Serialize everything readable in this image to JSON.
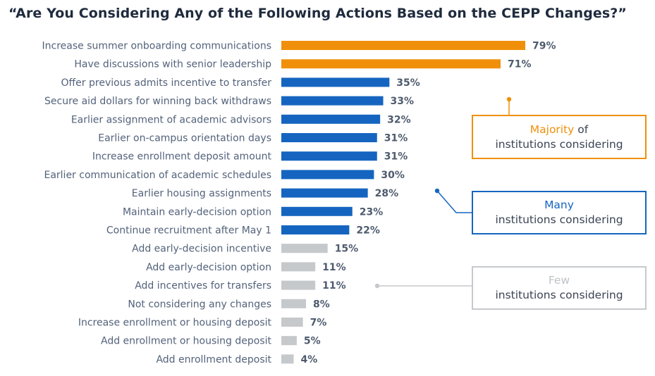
{
  "title": "“Are You Considering Any of the Following Actions Based on the CEPP Changes?”",
  "colors": {
    "orange": "#f0900a",
    "blue": "#1565c0",
    "gray": "#c6c9cc"
  },
  "callouts": {
    "majority": {
      "highlight": "Majority",
      "rest": " of",
      "line2": "institutions considering"
    },
    "many": {
      "highlight": "Many",
      "line2": "institutions considering"
    },
    "few": {
      "highlight": "Few",
      "line2": "institutions considering"
    }
  },
  "chart_data": {
    "type": "bar",
    "orientation": "horizontal",
    "title": "“Are You Considering Any of the Following Actions Based on the CEPP Changes?”",
    "categories": [
      "Increase summer onboarding communications",
      "Have discussions with senior leadership",
      "Offer previous admits incentive to transfer",
      "Secure aid dollars for winning back withdraws",
      "Earlier assignment of academic advisors",
      "Earlier on-campus orientation days",
      "Increase enrollment deposit amount",
      "Earlier communication of academic schedules",
      "Earlier housing assignments",
      "Maintain early-decision option",
      "Continue recruitment after May 1",
      "Add early-decision incentive",
      "Add early-decision option",
      "Add incentives for transfers",
      "Not considering any changes",
      "Increase enrollment or housing deposit",
      "Add enrollment or housing deposit",
      "Add enrollment deposit"
    ],
    "values": [
      79,
      71,
      35,
      33,
      32,
      31,
      31,
      30,
      28,
      23,
      22,
      15,
      11,
      11,
      8,
      7,
      5,
      4
    ],
    "value_labels": [
      "79%",
      "71%",
      "35%",
      "33%",
      "32%",
      "31%",
      "31%",
      "30%",
      "28%",
      "23%",
      "22%",
      "15%",
      "11%",
      "11%",
      "8%",
      "7%",
      "5%",
      "4%"
    ],
    "groups": [
      "majority",
      "majority",
      "many",
      "many",
      "many",
      "many",
      "many",
      "many",
      "many",
      "many",
      "many",
      "few",
      "few",
      "few",
      "few",
      "few",
      "few",
      "few"
    ],
    "xlim": [
      0,
      100
    ],
    "unit": "%",
    "grid": false,
    "legend": "none"
  }
}
